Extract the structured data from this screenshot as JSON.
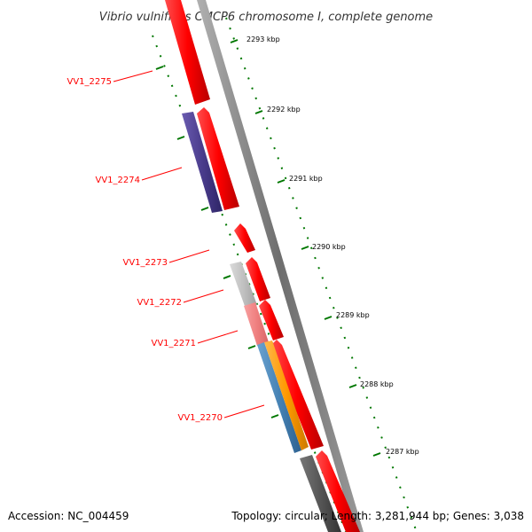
{
  "title": "Vibrio vulnificus CMCP6 chromosome I, complete genome",
  "footer": {
    "accession": "Accession: NC_004459",
    "summary": "Topology: circular; Length: 3,281,944 bp; Genes: 3,038"
  },
  "kbp_labels": [
    "2293 kbp",
    "2292 kbp",
    "2291 kbp",
    "2290 kbp",
    "2289 kbp",
    "2288 kbp",
    "2287 kbp"
  ],
  "gene_labels": [
    "VV1_2275",
    "VV1_2274",
    "VV1_2273",
    "VV1_2272",
    "VV1_2271",
    "VV1_2270"
  ],
  "colors": {
    "backbone": "#8c8c8c",
    "forward_cds": "#ff0000",
    "purple_cds": "#4a3c8c",
    "light_gray_cds": "#c0c0c0",
    "pink_cds": "#f08080",
    "blue_cds": "#4682b4",
    "orange_cds": "#ff9900",
    "dark_gray_cds": "#555555",
    "tick": "#007700",
    "label_line": "#ff0000"
  }
}
